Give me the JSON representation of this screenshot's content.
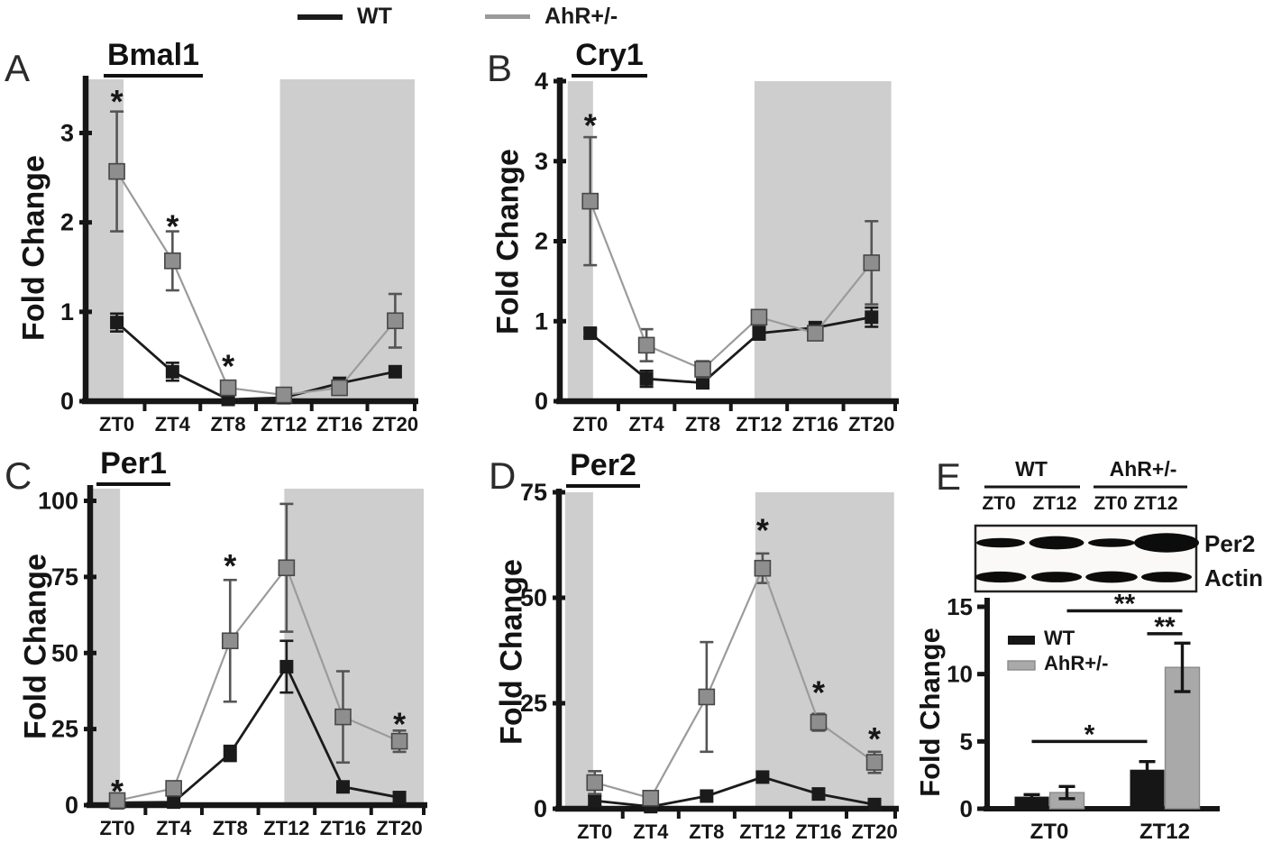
{
  "figure_legend": {
    "items": [
      {
        "label": "WT",
        "color": "#1b1b1b"
      },
      {
        "label": "AhR+/-",
        "color": "#9a9a9a"
      }
    ]
  },
  "panel_letters": {
    "A": "A",
    "B": "B",
    "C": "C",
    "D": "D",
    "E": "E"
  },
  "colors": {
    "axis": "#161616",
    "night_band": "#cecece",
    "wt": "#1b1b1b",
    "ahr_marker": "#8e8e8e",
    "ahr_bar": "#a9a9a9"
  },
  "western_blot": {
    "groups": [
      {
        "label": "WT",
        "lanes": [
          "ZT0",
          "ZT12"
        ]
      },
      {
        "label": "AhR+/-",
        "lanes": [
          "ZT0",
          "ZT12"
        ]
      }
    ],
    "rows": [
      {
        "label": "Per2",
        "band_intensities": [
          0.55,
          0.72,
          0.5,
          1.0
        ]
      },
      {
        "label": "Actin",
        "band_intensities": [
          0.62,
          0.6,
          0.64,
          0.6
        ]
      }
    ]
  },
  "chart_data": [
    {
      "id": "bmal1",
      "type": "line",
      "panel": "A",
      "title": "Bmal1",
      "ylabel": "Fold Change",
      "categories": [
        "ZT0",
        "ZT4",
        "ZT8",
        "ZT12",
        "ZT16",
        "ZT20"
      ],
      "ylim": [
        0,
        3.6
      ],
      "yticks": [
        0,
        1,
        2,
        3
      ],
      "xlim": [
        -0.56,
        5.35
      ],
      "night_bands": [
        [
          -0.56,
          0.12
        ],
        [
          2.93,
          5.35
        ]
      ],
      "series": [
        {
          "name": "WT",
          "color": "#1b1b1b",
          "line_color": "#1b1b1b",
          "error_color": "#1b1b1b",
          "marker_size": 15,
          "line_width": 2.8,
          "values": [
            0.88,
            0.33,
            0.02,
            0.04,
            0.2,
            0.33
          ],
          "errors": [
            0.1,
            0.1,
            0.04,
            0,
            0,
            0
          ]
        },
        {
          "name": "AhR+/-",
          "color": "#8e8e8e",
          "marker_stroke": "#474747",
          "line_color": "#9b9b9b",
          "error_color": "#555555",
          "marker_size": 17,
          "line_width": 2.2,
          "values": [
            2.57,
            1.57,
            0.15,
            0.07,
            0.15,
            0.9
          ],
          "errors": [
            0.67,
            0.33,
            0.07,
            0,
            0,
            0.3
          ]
        }
      ],
      "annotations": [
        {
          "label": "*",
          "x": 0,
          "y": 3.4
        },
        {
          "label": "*",
          "x": 1,
          "y": 2.0
        },
        {
          "label": "*",
          "x": 2,
          "y": 0.44
        }
      ]
    },
    {
      "id": "cry1",
      "type": "line",
      "panel": "B",
      "title": "Cry1",
      "ylabel": "Fold Change",
      "categories": [
        "ZT0",
        "ZT4",
        "ZT8",
        "ZT12",
        "ZT16",
        "ZT20"
      ],
      "ylim": [
        0,
        4
      ],
      "yticks": [
        0,
        1,
        2,
        3,
        4
      ],
      "xlim": [
        -0.54,
        5.42
      ],
      "night_bands": [
        [
          -0.4,
          0.05
        ],
        [
          2.92,
          5.35
        ]
      ],
      "series": [
        {
          "name": "WT",
          "color": "#1b1b1b",
          "line_color": "#1b1b1b",
          "error_color": "#1b1b1b",
          "marker_size": 15,
          "line_width": 2.8,
          "values": [
            0.85,
            0.28,
            0.23,
            0.85,
            0.92,
            1.05
          ],
          "errors": [
            0.05,
            0.1,
            0.05,
            0.08,
            0,
            0.12
          ]
        },
        {
          "name": "AhR+/-",
          "color": "#8e8e8e",
          "marker_stroke": "#474747",
          "line_color": "#9b9b9b",
          "error_color": "#555555",
          "marker_size": 17,
          "line_width": 2.2,
          "values": [
            2.5,
            0.7,
            0.4,
            1.05,
            0.85,
            1.73
          ],
          "errors": [
            0.8,
            0.2,
            0.1,
            0.08,
            0,
            0.52
          ]
        }
      ],
      "annotations": [
        {
          "label": "*",
          "x": 0,
          "y": 3.5
        }
      ]
    },
    {
      "id": "per1",
      "type": "line",
      "panel": "C",
      "title": "Per1",
      "ylabel": "Fold Change",
      "categories": [
        "ZT0",
        "ZT4",
        "ZT8",
        "ZT12",
        "ZT16",
        "ZT20"
      ],
      "ylim": [
        0,
        104
      ],
      "yticks": [
        0,
        25,
        50,
        75,
        100
      ],
      "xlim": [
        -0.48,
        5.43
      ],
      "night_bands": [
        [
          -0.43,
          0.05
        ],
        [
          2.96,
          5.43
        ]
      ],
      "series": [
        {
          "name": "WT",
          "color": "#1b1b1b",
          "line_color": "#1b1b1b",
          "error_color": "#1b1b1b",
          "marker_size": 15,
          "line_width": 2.8,
          "values": [
            0.8,
            1,
            17,
            45.5,
            6,
            2.5
          ],
          "errors": [
            0,
            0,
            2.5,
            8.5,
            0,
            0
          ]
        },
        {
          "name": "AhR+/-",
          "color": "#8e8e8e",
          "marker_stroke": "#474747",
          "line_color": "#9b9b9b",
          "error_color": "#555555",
          "marker_size": 17,
          "line_width": 2.2,
          "values": [
            1.5,
            5.5,
            54,
            78,
            29,
            21
          ],
          "errors": [
            0.8,
            1.2,
            20,
            21,
            15,
            3.5
          ]
        }
      ],
      "annotations": [
        {
          "label": "*",
          "x": 0,
          "y": 6
        },
        {
          "label": "*",
          "x": 2,
          "y": 80
        },
        {
          "label": "*",
          "x": 5,
          "y": 28
        }
      ]
    },
    {
      "id": "per2",
      "type": "line",
      "panel": "D",
      "title": "Per2",
      "ylabel": "Fold Change",
      "categories": [
        "ZT0",
        "ZT4",
        "ZT8",
        "ZT12",
        "ZT16",
        "ZT20"
      ],
      "ylim": [
        0,
        75
      ],
      "yticks": [
        0,
        25,
        50,
        75
      ],
      "xlim": [
        -0.64,
        5.37
      ],
      "night_bands": [
        [
          -0.53,
          -0.03
        ],
        [
          2.87,
          5.35
        ]
      ],
      "series": [
        {
          "name": "WT",
          "color": "#1b1b1b",
          "line_color": "#1b1b1b",
          "error_color": "#1b1b1b",
          "marker_size": 15,
          "line_width": 2.8,
          "values": [
            1.9,
            0.5,
            3,
            7.5,
            3.5,
            1
          ],
          "errors": [
            1.2,
            0,
            0,
            0,
            0,
            0
          ]
        },
        {
          "name": "AhR+/-",
          "color": "#8e8e8e",
          "marker_stroke": "#474747",
          "line_color": "#9b9b9b",
          "error_color": "#555555",
          "marker_size": 17,
          "line_width": 2.2,
          "values": [
            6.2,
            2.5,
            26.5,
            57,
            20.5,
            11
          ],
          "errors": [
            2.7,
            0,
            13,
            3.5,
            2,
            2.5
          ]
        }
      ],
      "annotations": [
        {
          "label": "*",
          "x": 3,
          "y": 67
        },
        {
          "label": "*",
          "x": 4,
          "y": 28.5
        },
        {
          "label": "*",
          "x": 5,
          "y": 17.5
        }
      ]
    },
    {
      "id": "per2_protein",
      "type": "bar",
      "panel": "E",
      "title": "",
      "ylabel": "Fold Change",
      "categories": [
        "ZT0",
        "ZT12"
      ],
      "ylim": [
        0,
        15
      ],
      "yticks": [
        0,
        5,
        10,
        15
      ],
      "series": [
        {
          "name": "WT",
          "color": "#161616",
          "values": [
            0.9,
            2.9
          ],
          "errors": [
            0.15,
            0.6
          ]
        },
        {
          "name": "AhR+/-",
          "color": "#a9a9a9",
          "bar_stroke": "#8a8a8a",
          "values": [
            1.2,
            10.5
          ],
          "errors": [
            0.45,
            1.8
          ]
        }
      ],
      "significance": [
        {
          "label": "**",
          "y": 14.7,
          "from": [
            0,
            1
          ],
          "to": [
            1,
            1
          ]
        },
        {
          "label": "**",
          "y": 13.0,
          "from": [
            1,
            0
          ],
          "to": [
            1,
            1
          ]
        },
        {
          "label": "*",
          "y": 5.0,
          "from": [
            0,
            0
          ],
          "to": [
            1,
            0
          ]
        }
      ]
    }
  ]
}
